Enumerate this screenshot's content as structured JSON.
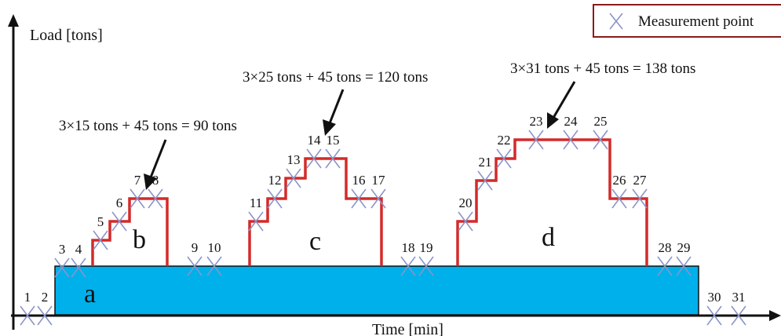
{
  "axes": {
    "y_label": "Load [tons]",
    "x_label": "Time [min]"
  },
  "legend": {
    "label": "Measurement point",
    "marker": "x-cross-marker",
    "border_color": "#8b1a1a"
  },
  "regions": [
    "a",
    "b",
    "c",
    "d"
  ],
  "equations": [
    "3×15 tons + 45 tons = 90 tons",
    "3×25 tons + 45 tons = 120 tons",
    "3×31 tons + 45 tons = 138 tons"
  ],
  "measurement_points": [
    "1",
    "2",
    "3",
    "4",
    "5",
    "6",
    "7",
    "8",
    "9",
    "10",
    "11",
    "12",
    "13",
    "14",
    "15",
    "16",
    "17",
    "18",
    "19",
    "20",
    "21",
    "22",
    "23",
    "24",
    "25",
    "26",
    "27",
    "28",
    "29",
    "30",
    "31"
  ],
  "colors": {
    "base_fill": "#00b0ea",
    "load_line": "#d42a2a",
    "marker": "#8b94c8",
    "axis": "#111111"
  }
}
